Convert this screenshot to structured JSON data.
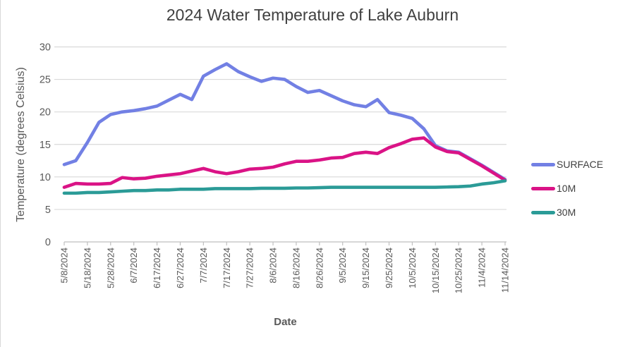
{
  "chart": {
    "title": "2024 Water Temperature of Lake Auburn",
    "x_axis_title": "Date",
    "y_axis_title": "Temperature (degrees Celsius)"
  },
  "chart_data": {
    "type": "line",
    "title": "2024 Water Temperature of Lake Auburn",
    "xlabel": "Date",
    "ylabel": "Temperature (degrees Celsius)",
    "ylim": [
      0,
      30
    ],
    "y_ticks": [
      0,
      5,
      10,
      15,
      20,
      25,
      30
    ],
    "grid": true,
    "legend_position": "right",
    "x_tick_every": 2,
    "x_tick_labels": [
      "5/8/2024",
      "5/18/2024",
      "5/28/2024",
      "6/7/2024",
      "6/17/2024",
      "6/27/2024",
      "7/7/2024",
      "7/17/2024",
      "7/27/2024",
      "8/6/2024",
      "8/16/2024",
      "8/26/2024",
      "9/5/2024",
      "9/15/2024",
      "9/25/2024",
      "10/5/2024",
      "10/15/2024",
      "10/25/2024",
      "11/4/2024",
      "11/14/2024"
    ],
    "x": [
      "5/8/2024",
      "5/13/2024",
      "5/18/2024",
      "5/23/2024",
      "5/28/2024",
      "6/2/2024",
      "6/7/2024",
      "6/12/2024",
      "6/17/2024",
      "6/22/2024",
      "6/27/2024",
      "7/2/2024",
      "7/7/2024",
      "7/12/2024",
      "7/17/2024",
      "7/22/2024",
      "7/27/2024",
      "8/1/2024",
      "8/6/2024",
      "8/11/2024",
      "8/16/2024",
      "8/21/2024",
      "8/26/2024",
      "8/31/2024",
      "9/5/2024",
      "9/10/2024",
      "9/15/2024",
      "9/20/2024",
      "9/25/2024",
      "9/30/2024",
      "10/5/2024",
      "10/10/2024",
      "10/15/2024",
      "10/20/2024",
      "10/25/2024",
      "10/30/2024",
      "11/4/2024",
      "11/9/2024",
      "11/14/2024"
    ],
    "series": [
      {
        "name": "SURFACE",
        "color": "#7280E4",
        "values": [
          11.9,
          12.5,
          15.3,
          18.4,
          19.6,
          20.0,
          20.2,
          20.5,
          20.9,
          21.8,
          22.7,
          21.9,
          25.5,
          26.5,
          27.4,
          26.2,
          25.4,
          24.7,
          25.2,
          25.0,
          23.9,
          23.0,
          23.3,
          22.5,
          21.7,
          21.1,
          20.8,
          21.9,
          19.9,
          19.5,
          19.0,
          17.4,
          14.8,
          14.0,
          13.8,
          12.8,
          11.8,
          10.7,
          9.6
        ]
      },
      {
        "name": "10M",
        "color": "#DA1386",
        "values": [
          8.4,
          9.0,
          8.9,
          8.9,
          9.0,
          9.9,
          9.7,
          9.8,
          10.1,
          10.3,
          10.5,
          10.9,
          11.3,
          10.8,
          10.5,
          10.8,
          11.2,
          11.3,
          11.5,
          12.0,
          12.4,
          12.4,
          12.6,
          12.9,
          13.0,
          13.6,
          13.8,
          13.6,
          14.5,
          15.1,
          15.8,
          16.0,
          14.6,
          13.9,
          13.7,
          12.7,
          11.7,
          10.6,
          9.5
        ]
      },
      {
        "name": "30M",
        "color": "#2B9B97",
        "values": [
          7.5,
          7.5,
          7.6,
          7.6,
          7.7,
          7.8,
          7.9,
          7.9,
          8.0,
          8.0,
          8.1,
          8.1,
          8.1,
          8.2,
          8.2,
          8.2,
          8.2,
          8.25,
          8.25,
          8.25,
          8.3,
          8.3,
          8.35,
          8.4,
          8.4,
          8.4,
          8.4,
          8.4,
          8.4,
          8.4,
          8.4,
          8.4,
          8.4,
          8.45,
          8.5,
          8.6,
          8.9,
          9.1,
          9.4
        ]
      }
    ],
    "style": {
      "gridline_color": "#d9d9d9",
      "axis_line_color": "#bfbfbf",
      "tick_label_color": "#595959",
      "title_color": "#404040"
    }
  }
}
